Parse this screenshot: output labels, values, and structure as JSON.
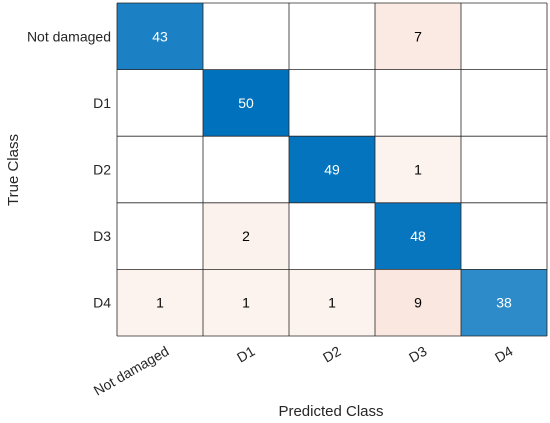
{
  "chart_data": {
    "type": "heatmap",
    "subtype": "confusion-matrix",
    "xlabel": "Predicted Class",
    "ylabel": "True Class",
    "x_categories": [
      "Not damaged",
      "D1",
      "D2",
      "D3",
      "D4"
    ],
    "y_categories": [
      "Not damaged",
      "D1",
      "D2",
      "D3",
      "D4"
    ],
    "matrix": [
      [
        43,
        null,
        null,
        7,
        null
      ],
      [
        null,
        50,
        null,
        null,
        null
      ],
      [
        null,
        null,
        49,
        1,
        null
      ],
      [
        null,
        2,
        null,
        48,
        null
      ],
      [
        1,
        1,
        1,
        9,
        38
      ]
    ],
    "colors": {
      "diagonal_max": "#0072bd",
      "diagonal_min": "#ffffff",
      "offdiag_max": "#d95319",
      "offdiag_min": "#ffffff",
      "grid": "#262626",
      "text_dark": "#000000",
      "text_light": "#ffffff"
    },
    "color_scale_max": 50
  }
}
